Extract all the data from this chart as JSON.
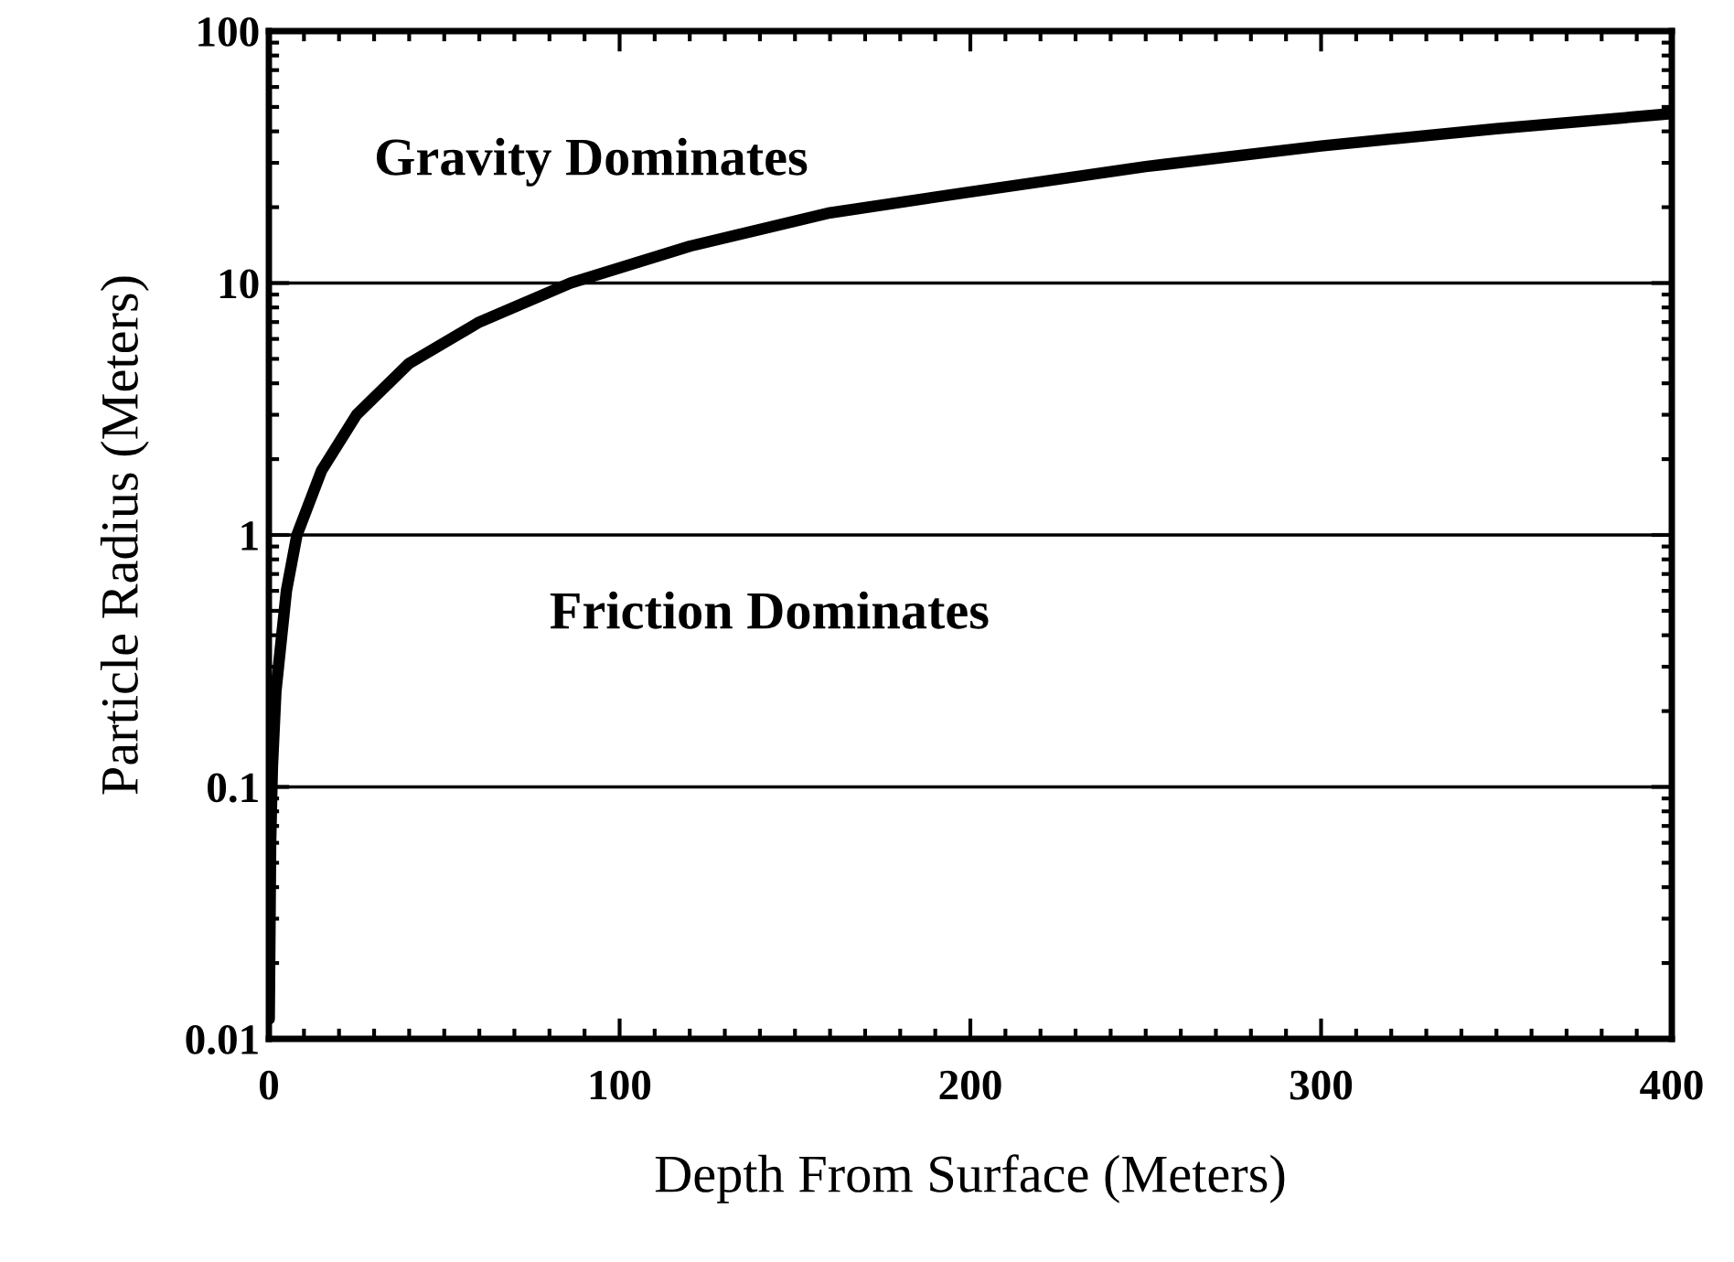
{
  "chart_data": {
    "type": "line",
    "xlabel": "Depth From Surface (Meters)",
    "ylabel": "Particle Radius (Meters)",
    "x": [
      0.1,
      0.5,
      1,
      2,
      5,
      8,
      15,
      25,
      40,
      60,
      86,
      120,
      160,
      200,
      250,
      300,
      350,
      400
    ],
    "series": [
      {
        "color": "#000000",
        "values": [
          0.012,
          0.06,
          0.12,
          0.24,
          0.6,
          1,
          1.8,
          3,
          4.8,
          7,
          10,
          14,
          19,
          23,
          29,
          35,
          41,
          47
        ]
      }
    ],
    "log": "y",
    "xlim": [
      0,
      400
    ],
    "xticks": [
      0,
      100,
      200,
      300,
      400
    ],
    "ylim": [
      0.01,
      100
    ],
    "yticks": [
      0.01,
      0.1,
      1,
      10,
      100
    ],
    "grid": "y",
    "marker": "none",
    "line_style": "solid",
    "annotations": [
      "Gravity Dominates",
      "Friction Dominates"
    ]
  }
}
